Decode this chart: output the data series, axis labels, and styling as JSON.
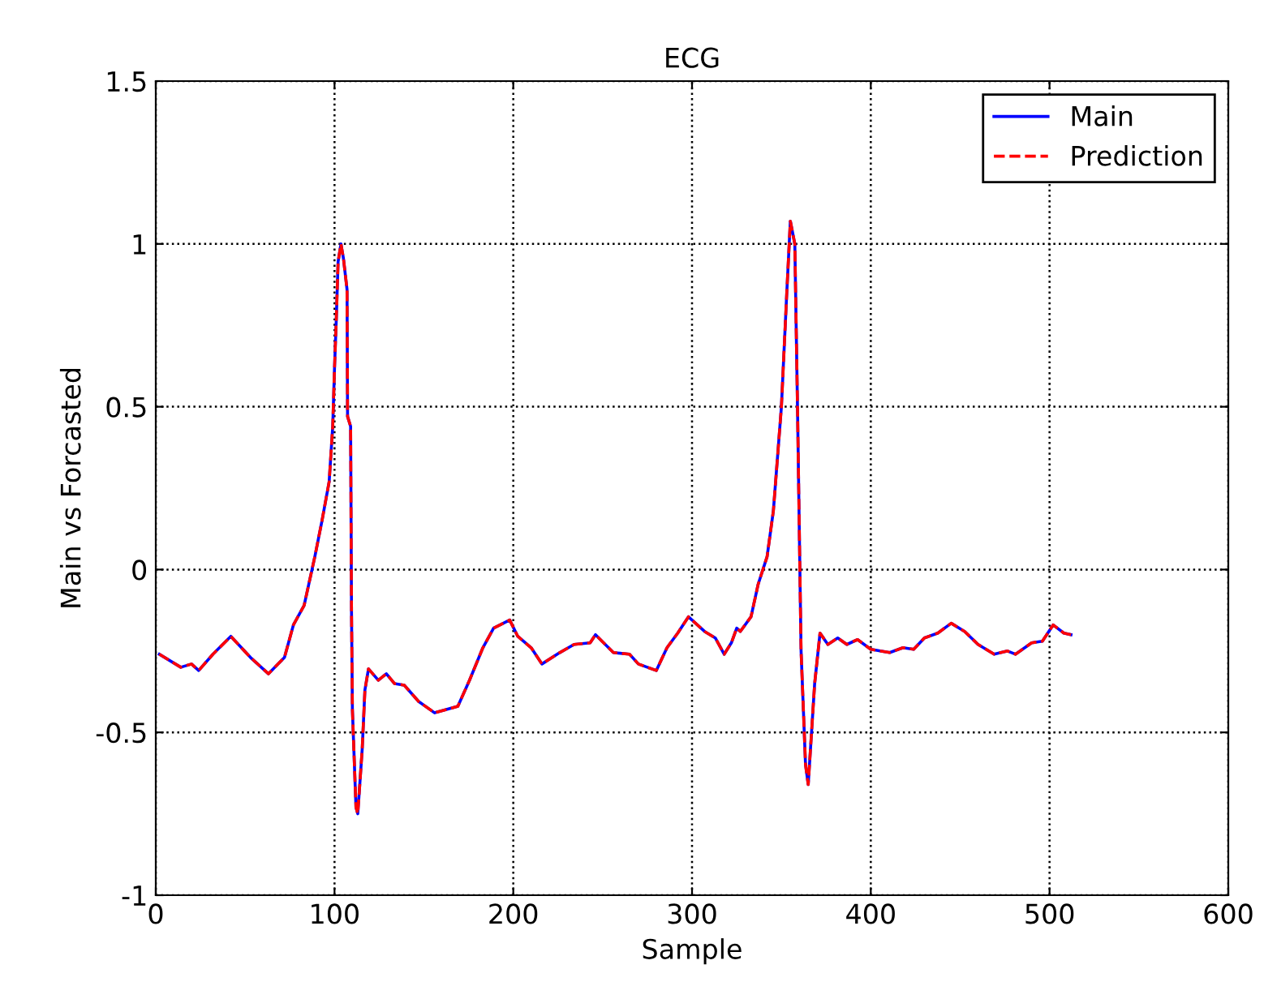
{
  "chart_data": {
    "type": "line",
    "title": "ECG",
    "xlabel": "Sample",
    "ylabel": "Main vs Forcasted",
    "x": [
      2,
      14,
      20,
      24,
      32,
      42,
      53,
      63,
      72,
      77,
      83,
      89,
      93,
      97,
      99,
      100,
      101,
      102,
      103.6,
      105,
      107,
      107.3,
      109,
      109.5,
      110,
      112,
      113,
      115.5,
      117,
      119,
      124.5,
      129,
      133.5,
      139,
      147,
      156,
      169,
      175.5,
      183,
      189,
      198,
      202.5,
      210,
      216,
      226,
      234,
      243,
      246,
      256,
      265,
      270,
      280,
      286,
      292,
      298,
      307,
      313,
      318,
      322,
      325,
      327,
      333,
      337,
      342,
      345.5,
      350,
      353,
      355,
      357.5,
      359,
      361,
      363.5,
      365,
      368.6,
      371.6,
      376,
      381.5,
      386.6,
      392.6,
      400,
      410.6,
      418,
      424,
      430,
      437.5,
      445,
      452.5,
      460,
      469,
      476.5,
      481,
      490,
      496,
      502,
      508,
      512
    ],
    "series": [
      {
        "name": "Main",
        "color": "#0000ff",
        "line_style": "solid",
        "values": [
          -0.26,
          -0.3,
          -0.29,
          -0.31,
          -0.26,
          -0.205,
          -0.27,
          -0.32,
          -0.27,
          -0.17,
          -0.11,
          0.04,
          0.15,
          0.27,
          0.44,
          0.62,
          0.77,
          0.945,
          1.0,
          0.955,
          0.86,
          0.47,
          0.44,
          -0.13,
          -0.43,
          -0.73,
          -0.75,
          -0.55,
          -0.37,
          -0.305,
          -0.34,
          -0.32,
          -0.35,
          -0.355,
          -0.405,
          -0.44,
          -0.42,
          -0.34,
          -0.24,
          -0.18,
          -0.155,
          -0.205,
          -0.24,
          -0.29,
          -0.255,
          -0.23,
          -0.225,
          -0.2,
          -0.255,
          -0.26,
          -0.29,
          -0.31,
          -0.24,
          -0.195,
          -0.145,
          -0.19,
          -0.21,
          -0.26,
          -0.225,
          -0.18,
          -0.19,
          -0.145,
          -0.045,
          0.04,
          0.18,
          0.5,
          0.85,
          1.07,
          1.0,
          0.5,
          -0.25,
          -0.6,
          -0.66,
          -0.35,
          -0.195,
          -0.23,
          -0.21,
          -0.23,
          -0.215,
          -0.245,
          -0.255,
          -0.24,
          -0.245,
          -0.21,
          -0.195,
          -0.165,
          -0.19,
          -0.23,
          -0.26,
          -0.25,
          -0.26,
          -0.225,
          -0.22,
          -0.17,
          -0.195,
          -0.2
        ]
      },
      {
        "name": "Prediction",
        "color": "#ff0000",
        "line_style": "dashed",
        "values": [
          -0.26,
          -0.3,
          -0.29,
          -0.31,
          -0.26,
          -0.205,
          -0.27,
          -0.32,
          -0.27,
          -0.17,
          -0.11,
          0.04,
          0.15,
          0.27,
          0.44,
          0.62,
          0.77,
          0.945,
          1.0,
          0.955,
          0.86,
          0.47,
          0.44,
          -0.13,
          -0.43,
          -0.73,
          -0.75,
          -0.55,
          -0.37,
          -0.305,
          -0.34,
          -0.32,
          -0.35,
          -0.355,
          -0.405,
          -0.44,
          -0.42,
          -0.34,
          -0.24,
          -0.18,
          -0.155,
          -0.205,
          -0.24,
          -0.29,
          -0.255,
          -0.23,
          -0.225,
          -0.2,
          -0.255,
          -0.26,
          -0.29,
          -0.31,
          -0.24,
          -0.195,
          -0.145,
          -0.19,
          -0.21,
          -0.26,
          -0.225,
          -0.18,
          -0.19,
          -0.145,
          -0.045,
          0.04,
          0.18,
          0.5,
          0.85,
          1.07,
          1.0,
          0.5,
          -0.25,
          -0.6,
          -0.66,
          -0.35,
          -0.195,
          -0.23,
          -0.21,
          -0.23,
          -0.215,
          -0.245,
          -0.255,
          -0.24,
          -0.245,
          -0.21,
          -0.195,
          -0.165,
          -0.19,
          -0.23,
          -0.26,
          -0.25,
          -0.26,
          -0.225,
          -0.22,
          -0.17,
          -0.195,
          -0.2
        ]
      }
    ],
    "xlim": [
      0,
      600
    ],
    "xticks": [
      0,
      100,
      200,
      300,
      400,
      500,
      600
    ],
    "ylim": [
      -1,
      1.5
    ],
    "yticks": [
      -1,
      -0.5,
      0,
      0.5,
      1,
      1.5
    ],
    "grid": true,
    "legend": "top right"
  }
}
